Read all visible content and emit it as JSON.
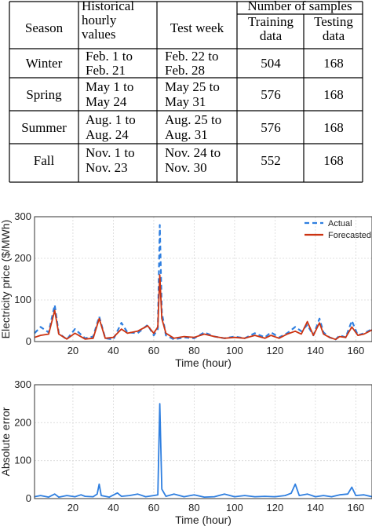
{
  "table": {
    "headers": {
      "season": "Season",
      "historical": [
        "Historical",
        "hourly",
        "values"
      ],
      "test_week": "Test week",
      "num_samples": "Number of samples",
      "training": [
        "Training",
        "data"
      ],
      "testing": [
        "Testing",
        "data"
      ]
    },
    "rows": [
      {
        "season": "Winter",
        "hist": [
          "Feb. 1 to",
          "Feb. 21"
        ],
        "test": [
          "Feb. 22 to",
          "Feb. 28"
        ],
        "training": "504",
        "testing": "168"
      },
      {
        "season": "Spring",
        "hist": [
          "May 1 to",
          "May 24"
        ],
        "test": [
          "May 25 to",
          "May 31"
        ],
        "training": "576",
        "testing": "168"
      },
      {
        "season": "Summer",
        "hist": [
          "Aug. 1 to",
          "Aug. 24"
        ],
        "test": [
          "Aug. 25 to",
          "Aug. 31"
        ],
        "training": "576",
        "testing": "168"
      },
      {
        "season": "Fall",
        "hist": [
          "Nov. 1 to",
          "Nov. 23"
        ],
        "test": [
          "Nov. 24 to",
          "Nov. 30"
        ],
        "training": "552",
        "testing": "168"
      }
    ]
  },
  "chart_data": [
    {
      "type": "line",
      "xlabel": "Time (hour)",
      "ylabel": "Electricity price ($/MWh)",
      "xlim": [
        1,
        168
      ],
      "ylim": [
        0,
        300
      ],
      "xticks": [
        20,
        40,
        60,
        80,
        100,
        120,
        140,
        160
      ],
      "yticks": [
        0,
        100,
        200,
        300
      ],
      "legend_position": "top-right",
      "series": [
        {
          "name": "Actual",
          "color": "#2f7fe0",
          "dash": true,
          "points": [
            [
              1,
              20
            ],
            [
              4,
              35
            ],
            [
              8,
              22
            ],
            [
              11,
              88
            ],
            [
              13,
              20
            ],
            [
              17,
              5
            ],
            [
              21,
              30
            ],
            [
              26,
              8
            ],
            [
              30,
              12
            ],
            [
              33,
              60
            ],
            [
              36,
              8
            ],
            [
              40,
              5
            ],
            [
              44,
              45
            ],
            [
              47,
              22
            ],
            [
              52,
              20
            ],
            [
              57,
              40
            ],
            [
              60,
              15
            ],
            [
              62,
              30
            ],
            [
              63,
              280
            ],
            [
              64,
              70
            ],
            [
              66,
              15
            ],
            [
              70,
              5
            ],
            [
              75,
              10
            ],
            [
              80,
              8
            ],
            [
              85,
              22
            ],
            [
              90,
              12
            ],
            [
              95,
              8
            ],
            [
              100,
              12
            ],
            [
              105,
              8
            ],
            [
              110,
              20
            ],
            [
              115,
              10
            ],
            [
              118,
              22
            ],
            [
              122,
              10
            ],
            [
              126,
              20
            ],
            [
              130,
              35
            ],
            [
              133,
              25
            ],
            [
              136,
              40
            ],
            [
              139,
              15
            ],
            [
              142,
              55
            ],
            [
              144,
              22
            ],
            [
              147,
              10
            ],
            [
              150,
              5
            ],
            [
              152,
              15
            ],
            [
              155,
              10
            ],
            [
              158,
              50
            ],
            [
              161,
              15
            ],
            [
              164,
              20
            ],
            [
              168,
              30
            ]
          ]
        },
        {
          "name": "Forecasted",
          "color": "#cc3311",
          "dash": false,
          "points": [
            [
              1,
              10
            ],
            [
              4,
              15
            ],
            [
              8,
              18
            ],
            [
              11,
              75
            ],
            [
              13,
              18
            ],
            [
              17,
              6
            ],
            [
              21,
              20
            ],
            [
              26,
              6
            ],
            [
              30,
              8
            ],
            [
              33,
              55
            ],
            [
              36,
              8
            ],
            [
              40,
              10
            ],
            [
              44,
              30
            ],
            [
              47,
              20
            ],
            [
              52,
              25
            ],
            [
              57,
              38
            ],
            [
              60,
              20
            ],
            [
              62,
              35
            ],
            [
              63,
              160
            ],
            [
              64,
              55
            ],
            [
              66,
              20
            ],
            [
              70,
              8
            ],
            [
              75,
              12
            ],
            [
              80,
              10
            ],
            [
              85,
              18
            ],
            [
              90,
              12
            ],
            [
              95,
              8
            ],
            [
              100,
              10
            ],
            [
              105,
              8
            ],
            [
              110,
              15
            ],
            [
              115,
              8
            ],
            [
              118,
              15
            ],
            [
              122,
              8
            ],
            [
              126,
              18
            ],
            [
              130,
              25
            ],
            [
              133,
              18
            ],
            [
              136,
              48
            ],
            [
              139,
              15
            ],
            [
              142,
              45
            ],
            [
              144,
              18
            ],
            [
              147,
              10
            ],
            [
              150,
              5
            ],
            [
              152,
              12
            ],
            [
              155,
              10
            ],
            [
              158,
              35
            ],
            [
              161,
              15
            ],
            [
              164,
              18
            ],
            [
              168,
              28
            ]
          ]
        }
      ]
    },
    {
      "type": "line",
      "xlabel": "Time (hour)",
      "ylabel": "Absolute error",
      "xlim": [
        1,
        168
      ],
      "ylim": [
        0,
        300
      ],
      "xticks": [
        20,
        40,
        60,
        80,
        100,
        120,
        140,
        160
      ],
      "yticks": [
        0,
        100,
        200,
        300
      ],
      "series": [
        {
          "color": "#2f7fe0",
          "dash": false,
          "points": [
            [
              1,
              5
            ],
            [
              4,
              8
            ],
            [
              8,
              4
            ],
            [
              11,
              12
            ],
            [
              13,
              4
            ],
            [
              17,
              8
            ],
            [
              21,
              5
            ],
            [
              24,
              10
            ],
            [
              26,
              6
            ],
            [
              30,
              5
            ],
            [
              32,
              12
            ],
            [
              33,
              38
            ],
            [
              34,
              8
            ],
            [
              38,
              4
            ],
            [
              42,
              15
            ],
            [
              44,
              6
            ],
            [
              48,
              8
            ],
            [
              52,
              12
            ],
            [
              56,
              5
            ],
            [
              60,
              8
            ],
            [
              62,
              10
            ],
            [
              63,
              250
            ],
            [
              64,
              25
            ],
            [
              66,
              6
            ],
            [
              70,
              12
            ],
            [
              75,
              5
            ],
            [
              80,
              10
            ],
            [
              85,
              4
            ],
            [
              90,
              5
            ],
            [
              95,
              12
            ],
            [
              100,
              5
            ],
            [
              105,
              8
            ],
            [
              110,
              5
            ],
            [
              115,
              6
            ],
            [
              120,
              5
            ],
            [
              125,
              8
            ],
            [
              128,
              14
            ],
            [
              130,
              38
            ],
            [
              132,
              8
            ],
            [
              136,
              12
            ],
            [
              140,
              5
            ],
            [
              144,
              8
            ],
            [
              148,
              5
            ],
            [
              152,
              10
            ],
            [
              156,
              12
            ],
            [
              158,
              30
            ],
            [
              160,
              8
            ],
            [
              164,
              10
            ],
            [
              168,
              5
            ]
          ]
        }
      ]
    }
  ]
}
